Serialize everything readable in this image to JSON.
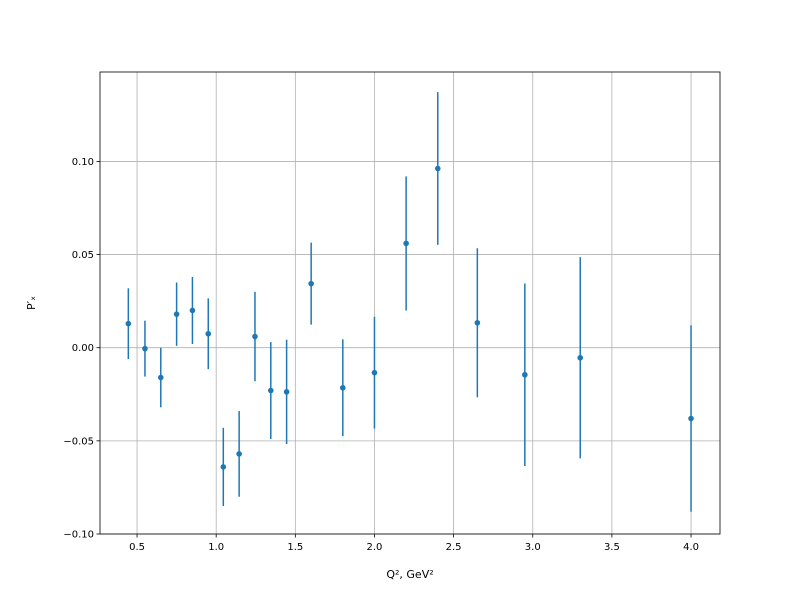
{
  "chart_data": {
    "type": "scatter",
    "x_label": "Q², GeV²",
    "y_label": "P′ₓ",
    "xlim": [
      0.266,
      4.183
    ],
    "ylim": [
      -0.1,
      0.148
    ],
    "xticks": [
      0.5,
      {
        "value": 1,
        "label": "1.0"
      },
      1.5,
      {
        "value": 2,
        "label": "2.0"
      },
      2.5,
      {
        "value": 3,
        "label": "3.0"
      },
      3.5,
      {
        "value": 4,
        "label": "4.0"
      }
    ],
    "yticks": [
      {
        "value": -0.1,
        "label": "−0.10"
      },
      {
        "value": -0.05,
        "label": "−0.05"
      },
      {
        "value": 0,
        "label": "0.00"
      },
      0.05,
      {
        "value": 0.1,
        "label": "0.10"
      }
    ],
    "grid": true,
    "series": [
      {
        "color": "#1f77b4",
        "x": [
          0.445,
          0.55,
          0.65,
          0.75,
          0.85,
          0.95,
          1.045,
          1.145,
          1.245,
          1.345,
          1.445,
          1.6,
          1.8,
          2.0,
          2.2,
          2.4,
          2.65,
          2.95,
          3.3,
          4.0
        ],
        "values": [
          0.0129,
          -0.0005,
          -0.016,
          0.018,
          0.02,
          0.0075,
          -0.064,
          -0.057,
          0.006,
          -0.023,
          -0.0237,
          0.0344,
          -0.0215,
          -0.0134,
          0.056,
          0.0962,
          0.0134,
          -0.0145,
          -0.0054,
          -0.038
        ],
        "errors": [
          0.019,
          0.015,
          0.016,
          0.017,
          0.018,
          0.019,
          0.021,
          0.023,
          0.024,
          0.026,
          0.028,
          0.022,
          0.026,
          0.03,
          0.036,
          0.041,
          0.04,
          0.049,
          0.054,
          0.05
        ]
      }
    ]
  }
}
